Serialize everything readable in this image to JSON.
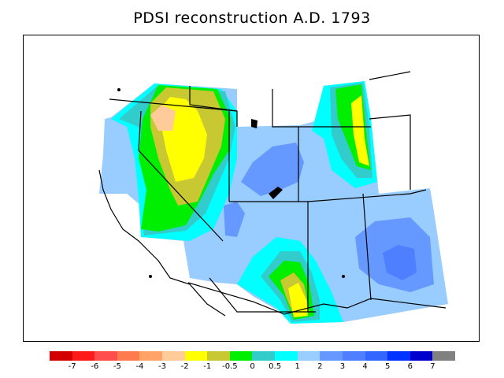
{
  "title": "PDSI reconstruction A.D. 1793",
  "legend": {
    "colors": [
      "#d40000",
      "#ff1a1a",
      "#ff4d4d",
      "#ff7a4d",
      "#ffa366",
      "#ffcc99",
      "#ffff00",
      "#c8c832",
      "#00ee00",
      "#33cccc",
      "#00ffff",
      "#99ccff",
      "#6699ff",
      "#4d7fff",
      "#3366ff",
      "#0033ff",
      "#0000cc",
      "#808080"
    ],
    "labels": [
      "-7",
      "-6",
      "-5",
      "-4",
      "-3",
      "-2",
      "-1",
      "-0.5",
      "0",
      "0.5",
      "1",
      "2",
      "3",
      "4",
      "5",
      "6",
      "7"
    ]
  }
}
